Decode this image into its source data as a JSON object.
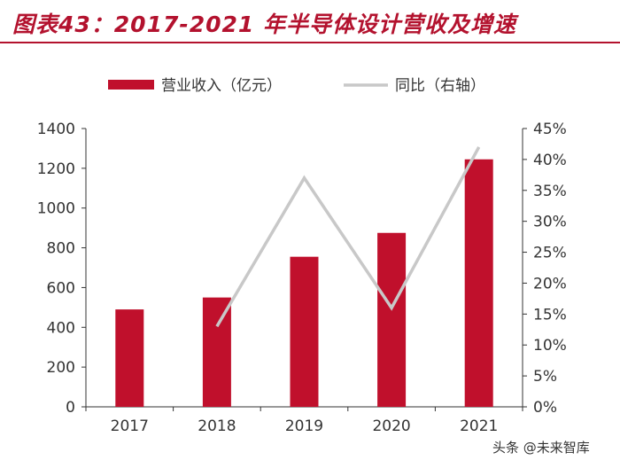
{
  "title": "图表43：2017-2021 年半导体设计营收及增速",
  "watermark": "头条 @未来智库",
  "colors": {
    "bar": "#c0102c",
    "line": "#c8c8c8",
    "title": "#b3122e",
    "axis": "#333333"
  },
  "chart_data": {
    "type": "bar",
    "categories": [
      "2017",
      "2018",
      "2019",
      "2020",
      "2021"
    ],
    "series": [
      {
        "name": "营业收入（亿元）",
        "type": "bar",
        "axis": "left",
        "values": [
          490,
          550,
          755,
          875,
          1245
        ]
      },
      {
        "name": "同比（右轴）",
        "type": "line",
        "axis": "right",
        "values": [
          null,
          13,
          37,
          16,
          42
        ]
      }
    ],
    "y_left": {
      "lim": [
        0,
        1400
      ],
      "ticks": [
        "0",
        "200",
        "400",
        "600",
        "800",
        "1000",
        "1200",
        "1400"
      ]
    },
    "y_right": {
      "lim": [
        0,
        45
      ],
      "ticks": [
        "0%",
        "5%",
        "10%",
        "15%",
        "20%",
        "25%",
        "30%",
        "35%",
        "40%",
        "45%"
      ]
    },
    "legend": {
      "position": "top"
    },
    "grid": false
  }
}
